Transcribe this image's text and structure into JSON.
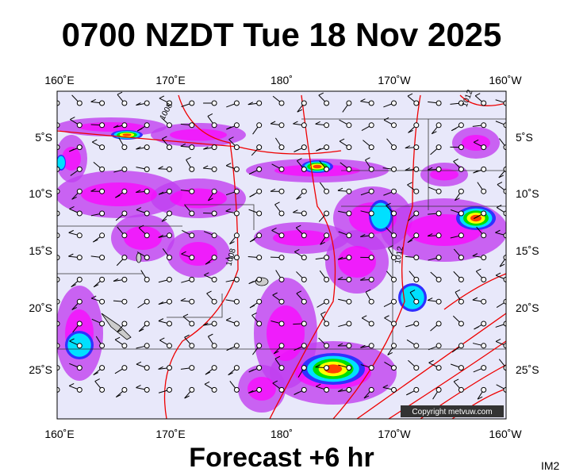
{
  "title": "0700 NZDT Tue 18 Nov 2025",
  "footer": "Forecast +6 hr",
  "corner_label": "IM2",
  "copyright": "Copyright metvuw.com",
  "longitude_labels": [
    "160˚E",
    "170˚E",
    "180˚",
    "170˚W",
    "160˚W"
  ],
  "latitude_labels": [
    "5˚S",
    "10˚S",
    "15˚S",
    "20˚S",
    "25˚S"
  ],
  "isobar_labels": [
    "1008",
    "1012",
    "1008",
    "1012"
  ]
}
